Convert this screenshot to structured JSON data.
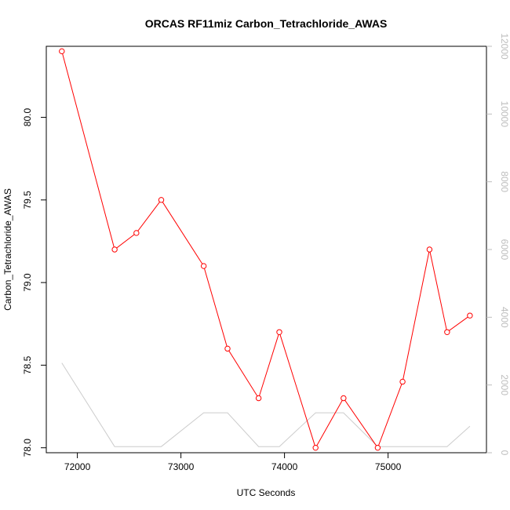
{
  "chart_data": {
    "type": "line",
    "title": "ORCAS RF11miz Carbon_Tetrachloride_AWAS",
    "xlabel": "UTC Seconds",
    "ylabel": "Carbon_Tetrachloride_AWAS",
    "xlim": [
      71700,
      75950
    ],
    "ylim": [
      77.97,
      80.43
    ],
    "y2lim": [
      0,
      12000
    ],
    "x_ticks": [
      72000,
      73000,
      74000,
      75000
    ],
    "y_ticks": [
      78.0,
      78.5,
      79.0,
      79.5,
      80.0
    ],
    "y_tick_labels": [
      "78.0",
      "78.5",
      "79.0",
      "79.5",
      "80.0"
    ],
    "y2_ticks": [
      0,
      2000,
      4000,
      6000,
      8000,
      10000,
      12000
    ],
    "grid": false,
    "colors": {
      "primary": "#ff0000",
      "secondary": "#cccccc",
      "axis2": "#bdbdbd"
    },
    "series": [
      {
        "axis": "left",
        "style": "line-with-circles",
        "x": [
          71850,
          72360,
          72570,
          72810,
          73220,
          73450,
          73750,
          73950,
          74300,
          74570,
          74900,
          75140,
          75400,
          75570,
          75790
        ],
        "values": [
          80.4,
          79.2,
          79.3,
          79.5,
          79.1,
          78.6,
          78.3,
          78.7,
          78.0,
          78.3,
          78.0,
          78.4,
          79.2,
          78.7,
          78.8
        ]
      },
      {
        "axis": "right",
        "style": "line",
        "x": [
          71850,
          72360,
          72570,
          72810,
          73220,
          73450,
          73750,
          73950,
          74300,
          74570,
          74900,
          75140,
          75400,
          75570,
          75790
        ],
        "values": [
          2650,
          180,
          180,
          180,
          1180,
          1180,
          180,
          180,
          1180,
          1180,
          180,
          180,
          180,
          180,
          780
        ]
      }
    ]
  }
}
